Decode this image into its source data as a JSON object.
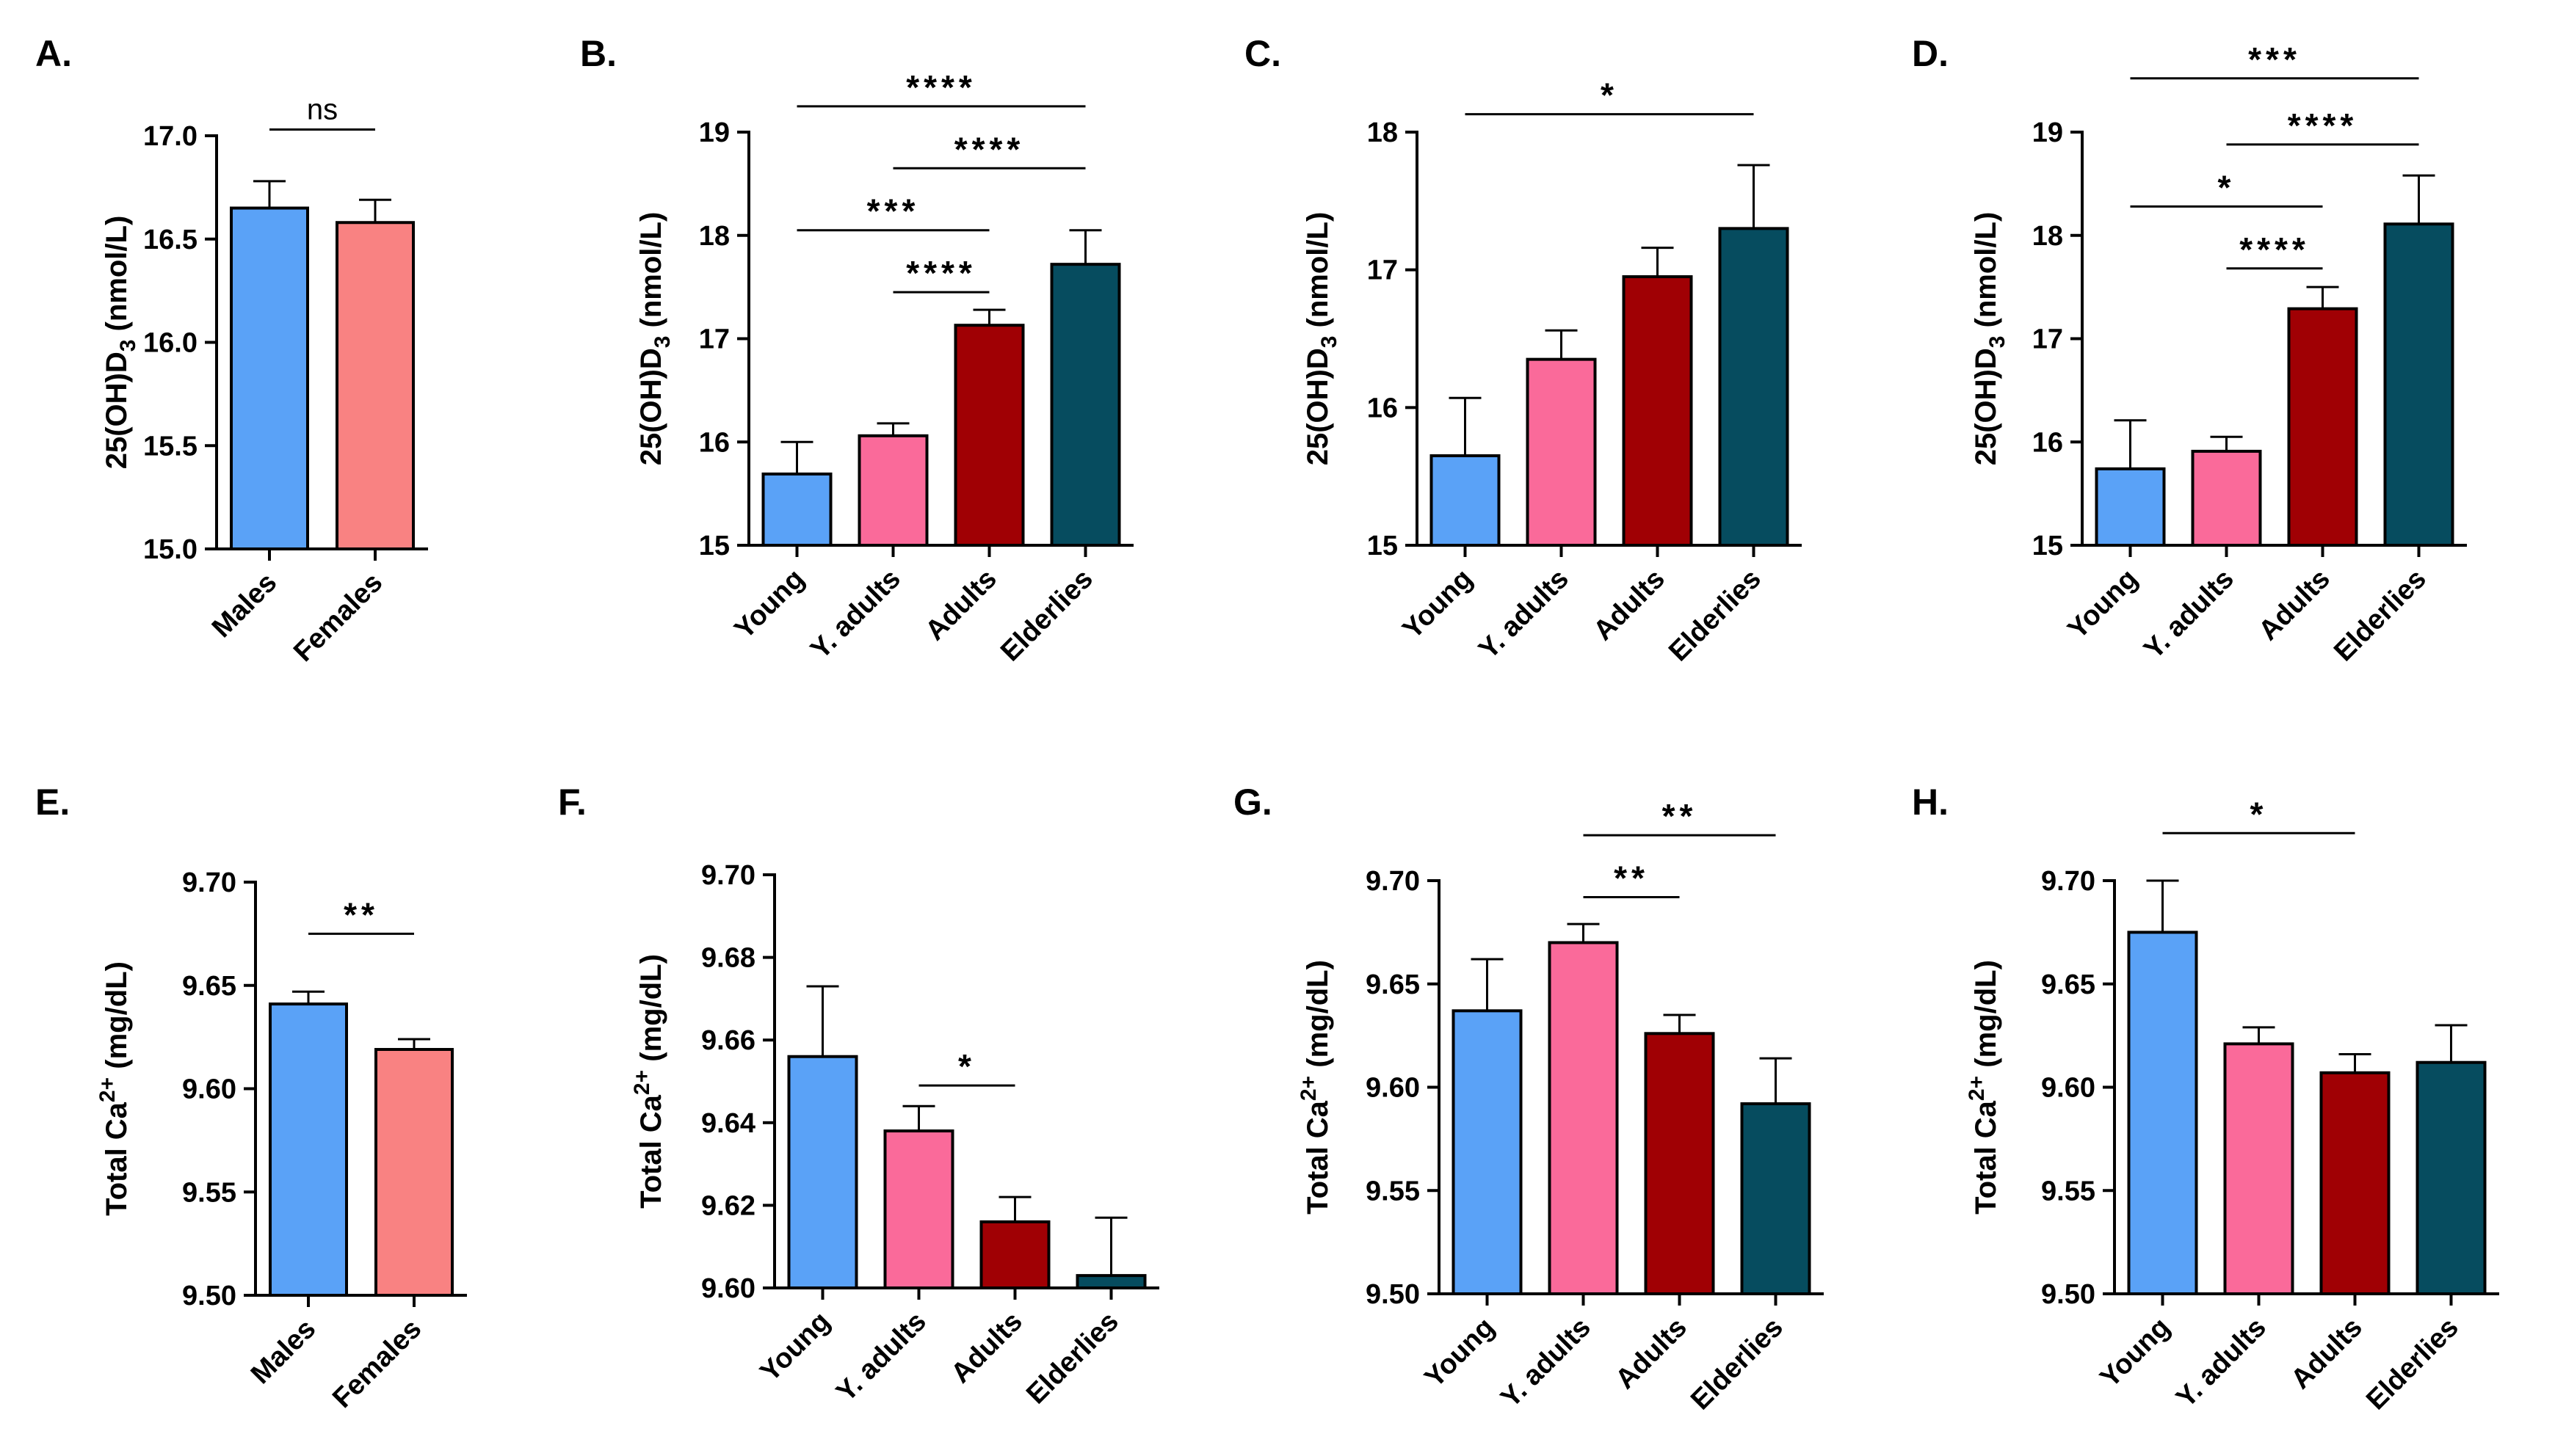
{
  "colors": {
    "males": "#5AA2F7",
    "females": "#F98282",
    "young": "#5AA2F7",
    "y_adults": "#FA6A9A",
    "adults": "#A00004",
    "elderlies": "#064C5F",
    "axis": "#000000"
  },
  "chart_data": [
    {
      "panel": "A.",
      "type": "bar",
      "ylabel_main": "25(OH)D",
      "ylabel_sub": "3",
      "ylabel_sup": "",
      "ylabel_unit": " (nmol/L)",
      "categories": [
        "Males",
        "Females"
      ],
      "color_keys": [
        "males",
        "females"
      ],
      "values": [
        16.65,
        16.58
      ],
      "errors": [
        0.13,
        0.11
      ],
      "ylim": [
        15.0,
        17.0
      ],
      "yticks": [
        15.0,
        15.5,
        16.0,
        16.5,
        17.0
      ],
      "ytick_labels": [
        "15.0",
        "15.5",
        "16.0",
        "16.5",
        "17.0"
      ],
      "significance": [
        {
          "from": 0,
          "to": 1,
          "text": "ns",
          "y": 17.03
        }
      ]
    },
    {
      "panel": "B.",
      "type": "bar",
      "ylabel_main": "25(OH)D",
      "ylabel_sub": "3",
      "ylabel_sup": "",
      "ylabel_unit": " (nmol/L)",
      "categories": [
        "Young",
        "Y. adults",
        "Adults",
        "Elderlies"
      ],
      "color_keys": [
        "young",
        "y_adults",
        "adults",
        "elderlies"
      ],
      "values": [
        15.69,
        16.06,
        17.13,
        17.72
      ],
      "errors": [
        0.31,
        0.12,
        0.15,
        0.33
      ],
      "ylim": [
        15,
        19
      ],
      "yticks": [
        15,
        16,
        17,
        18,
        19
      ],
      "ytick_labels": [
        "15",
        "16",
        "17",
        "18",
        "19"
      ],
      "significance": [
        {
          "from": 0,
          "to": 3,
          "text": "****",
          "y": 19.25
        },
        {
          "from": 1,
          "to": 3,
          "text": "****",
          "y": 18.65
        },
        {
          "from": 0,
          "to": 2,
          "text": "***",
          "y": 18.05
        },
        {
          "from": 1,
          "to": 2,
          "text": "****",
          "y": 17.45
        }
      ]
    },
    {
      "panel": "C.",
      "type": "bar",
      "ylabel_main": "25(OH)D",
      "ylabel_sub": "3",
      "ylabel_sup": "",
      "ylabel_unit": " (nmol/L)",
      "categories": [
        "Young",
        "Y. adults",
        "Adults",
        "Elderlies"
      ],
      "color_keys": [
        "young",
        "y_adults",
        "adults",
        "elderlies"
      ],
      "values": [
        15.65,
        16.35,
        16.95,
        17.3
      ],
      "errors": [
        0.42,
        0.21,
        0.21,
        0.46
      ],
      "ylim": [
        15,
        18
      ],
      "yticks": [
        15,
        16,
        17,
        18
      ],
      "ytick_labels": [
        "15",
        "16",
        "17",
        "18"
      ],
      "significance": [
        {
          "from": 0,
          "to": 3,
          "text": "*",
          "y": 18.13
        }
      ]
    },
    {
      "panel": "D.",
      "type": "bar",
      "ylabel_main": "25(OH)D",
      "ylabel_sub": "3",
      "ylabel_sup": "",
      "ylabel_unit": " (nmol/L)",
      "categories": [
        "Young",
        "Y. adults",
        "Adults",
        "Elderlies"
      ],
      "color_keys": [
        "young",
        "y_adults",
        "adults",
        "elderlies"
      ],
      "values": [
        15.74,
        15.91,
        17.29,
        18.11
      ],
      "errors": [
        0.47,
        0.14,
        0.21,
        0.47
      ],
      "ylim": [
        15,
        19
      ],
      "yticks": [
        15,
        16,
        17,
        18,
        19
      ],
      "ytick_labels": [
        "15",
        "16",
        "17",
        "18",
        "19"
      ],
      "significance": [
        {
          "from": 0,
          "to": 3,
          "text": "***",
          "y": 19.52
        },
        {
          "from": 1,
          "to": 3,
          "text": "****",
          "y": 18.88
        },
        {
          "from": 0,
          "to": 2,
          "text": "*",
          "y": 18.28
        },
        {
          "from": 1,
          "to": 2,
          "text": "****",
          "y": 17.68
        }
      ]
    },
    {
      "panel": "E.",
      "type": "bar",
      "ylabel_main": "Total Ca",
      "ylabel_sub": "",
      "ylabel_sup": "2+",
      "ylabel_unit": " (mg/dL)",
      "categories": [
        "Males",
        "Females"
      ],
      "color_keys": [
        "males",
        "females"
      ],
      "values": [
        9.641,
        9.619
      ],
      "errors": [
        0.006,
        0.005
      ],
      "ylim": [
        9.5,
        9.7
      ],
      "yticks": [
        9.5,
        9.55,
        9.6,
        9.65,
        9.7
      ],
      "ytick_labels": [
        "9.50",
        "9.55",
        "9.60",
        "9.65",
        "9.70"
      ],
      "significance": [
        {
          "from": 0,
          "to": 1,
          "text": "**",
          "y": 9.675
        }
      ]
    },
    {
      "panel": "F.",
      "type": "bar",
      "ylabel_main": "Total Ca",
      "ylabel_sub": "",
      "ylabel_sup": "2+",
      "ylabel_unit": " (mg/dL)",
      "categories": [
        "Young",
        "Y. adults",
        "Adults",
        "Elderlies"
      ],
      "color_keys": [
        "young",
        "y_adults",
        "adults",
        "elderlies"
      ],
      "values": [
        9.656,
        9.638,
        9.616,
        9.603
      ],
      "errors": [
        0.017,
        0.006,
        0.006,
        0.014
      ],
      "ylim": [
        9.6,
        9.7
      ],
      "yticks": [
        9.6,
        9.62,
        9.64,
        9.66,
        9.68,
        9.7
      ],
      "ytick_labels": [
        "9.60",
        "9.62",
        "9.64",
        "9.66",
        "9.68",
        "9.70"
      ],
      "significance": [
        {
          "from": 1,
          "to": 2,
          "text": "*",
          "y": 9.649
        }
      ]
    },
    {
      "panel": "G.",
      "type": "bar",
      "ylabel_main": "Total Ca",
      "ylabel_sub": "",
      "ylabel_sup": "2+",
      "ylabel_unit": " (mg/dL)",
      "categories": [
        "Young",
        "Y. adults",
        "Adults",
        "Elderlies"
      ],
      "color_keys": [
        "young",
        "y_adults",
        "adults",
        "elderlies"
      ],
      "values": [
        9.637,
        9.67,
        9.626,
        9.592
      ],
      "errors": [
        0.025,
        0.009,
        0.009,
        0.022
      ],
      "ylim": [
        9.5,
        9.7
      ],
      "yticks": [
        9.5,
        9.55,
        9.6,
        9.65,
        9.7
      ],
      "ytick_labels": [
        "9.50",
        "9.55",
        "9.60",
        "9.65",
        "9.70"
      ],
      "significance": [
        {
          "from": 1,
          "to": 3,
          "text": "**",
          "y": 9.722
        },
        {
          "from": 1,
          "to": 2,
          "text": "**",
          "y": 9.692
        }
      ]
    },
    {
      "panel": "H.",
      "type": "bar",
      "ylabel_main": "Total Ca",
      "ylabel_sub": "",
      "ylabel_sup": "2+",
      "ylabel_unit": " (mg/dL)",
      "categories": [
        "Young",
        "Y. adults",
        "Adults",
        "Elderlies"
      ],
      "color_keys": [
        "young",
        "y_adults",
        "adults",
        "elderlies"
      ],
      "values": [
        9.675,
        9.621,
        9.607,
        9.612
      ],
      "errors": [
        0.025,
        0.008,
        0.009,
        0.018
      ],
      "ylim": [
        9.5,
        9.7
      ],
      "yticks": [
        9.5,
        9.55,
        9.6,
        9.65,
        9.7
      ],
      "ytick_labels": [
        "9.50",
        "9.55",
        "9.60",
        "9.65",
        "9.70"
      ],
      "significance": [
        {
          "from": 0,
          "to": 2,
          "text": "*",
          "y": 9.723
        }
      ]
    }
  ]
}
